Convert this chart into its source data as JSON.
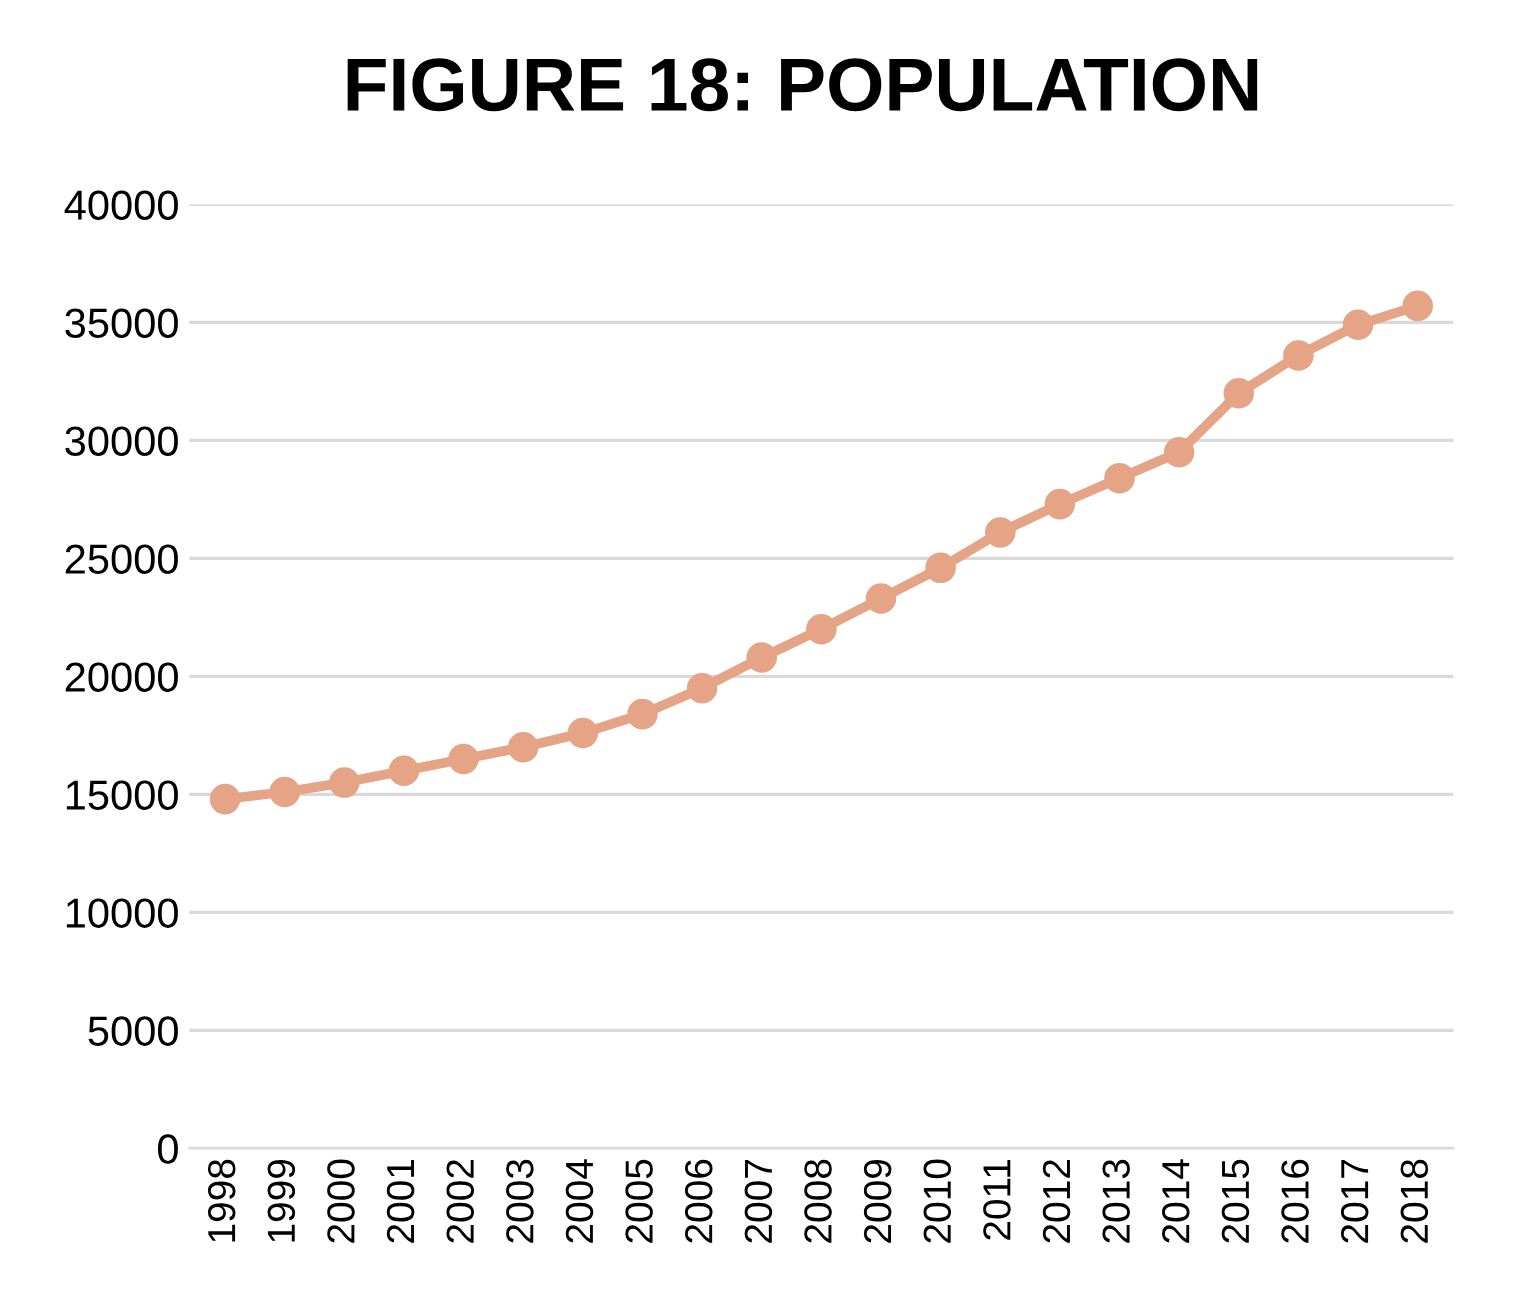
{
  "chart_data": {
    "type": "line",
    "title": "FIGURE 18: POPULATION",
    "categories": [
      "1998",
      "1999",
      "2000",
      "2001",
      "2002",
      "2003",
      "2004",
      "2005",
      "2006",
      "2007",
      "2008",
      "2009",
      "2010",
      "2011",
      "2012",
      "2013",
      "2014",
      "2015",
      "2016",
      "2017",
      "2018"
    ],
    "series": [
      {
        "color": "#e6a486",
        "values": [
          14800,
          15100,
          15500,
          16000,
          16500,
          17000,
          17600,
          18400,
          19500,
          20800,
          22000,
          23300,
          24600,
          26100,
          27300,
          28400,
          29500,
          32000,
          33600,
          34900,
          35700
        ]
      }
    ],
    "ylim": [
      0,
      40000
    ],
    "yticks": [
      0,
      5000,
      10000,
      15000,
      20000,
      25000,
      30000,
      35000,
      40000
    ],
    "grid": "y",
    "marker": "circle",
    "line_style": "solid",
    "legend": false
  }
}
